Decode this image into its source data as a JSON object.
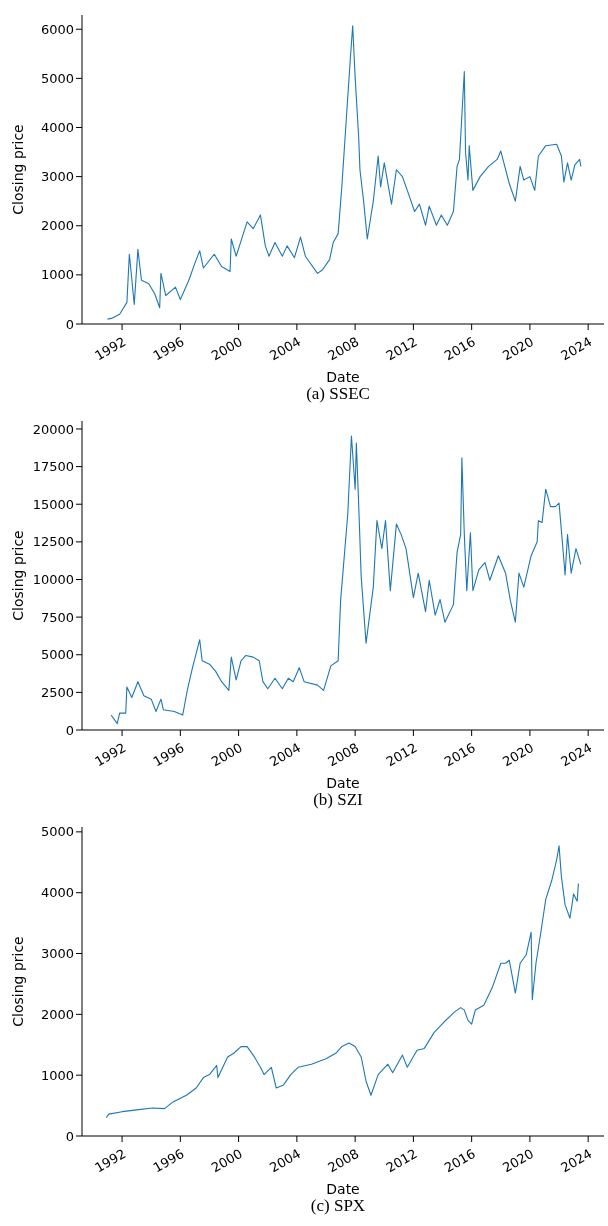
{
  "chart_data": [
    {
      "type": "line",
      "title": "(a) SSEC",
      "xlabel": "Date",
      "ylabel": "Closing price",
      "xlim": [
        "1989-04",
        "2025-02"
      ],
      "xticks": [
        "1992",
        "1996",
        "2000",
        "2004",
        "2008",
        "2012",
        "2016",
        "2020",
        "2024"
      ],
      "ylim": [
        0,
        6290
      ],
      "yticks": [
        0,
        1000,
        2000,
        3000,
        4000,
        5000,
        6000
      ],
      "series": [
        {
          "color": "#1f77b4",
          "x": [
            "1991-01",
            "1991-05",
            "1991-11",
            "1992-05",
            "1992-07",
            "1992-08",
            "1992-11",
            "1993-02",
            "1993-05",
            "1993-11",
            "1994-04",
            "1994-08",
            "1994-09",
            "1995-01",
            "1995-09",
            "1996-01",
            "1996-08",
            "1997-01",
            "1997-05",
            "1997-08",
            "1998-05",
            "1998-11",
            "1999-06",
            "1999-07",
            "1999-11",
            "2000-08",
            "2001-01",
            "2001-07",
            "2001-11",
            "2002-02",
            "2002-07",
            "2003-01",
            "2003-05",
            "2003-11",
            "2004-04",
            "2004-08",
            "2005-06",
            "2005-10",
            "2006-04",
            "2006-07",
            "2006-11",
            "2007-02",
            "2007-06",
            "2007-09",
            "2007-11",
            "2008-01",
            "2008-04",
            "2008-05",
            "2008-08",
            "2008-11",
            "2009-04",
            "2009-08",
            "2009-10",
            "2010-01",
            "2010-07",
            "2010-11",
            "2011-04",
            "2011-08",
            "2012-02",
            "2012-06",
            "2012-11",
            "2013-02",
            "2013-08",
            "2013-12",
            "2014-05",
            "2014-10",
            "2015-01",
            "2015-03",
            "2015-07",
            "2015-08",
            "2015-10",
            "2015-11",
            "2016-02",
            "2016-08",
            "2017-03",
            "2017-10",
            "2018-01",
            "2018-08",
            "2019-01",
            "2019-05",
            "2019-08",
            "2020-01",
            "2020-05",
            "2020-08",
            "2021-02",
            "2021-11",
            "2022-03",
            "2022-05",
            "2022-08",
            "2022-11",
            "2023-02",
            "2023-06",
            "2023-07"
          ],
          "values": [
            100,
            120,
            200,
            440,
            1420,
            1170,
            400,
            1520,
            890,
            820,
            610,
            330,
            1030,
            580,
            750,
            500,
            890,
            1240,
            1490,
            1140,
            1420,
            1170,
            1070,
            1730,
            1380,
            2080,
            1940,
            2220,
            1590,
            1380,
            1660,
            1380,
            1590,
            1350,
            1770,
            1380,
            1030,
            1100,
            1310,
            1660,
            1840,
            2790,
            4260,
            5380,
            6070,
            5030,
            3770,
            3140,
            2500,
            1730,
            2500,
            3420,
            2790,
            3280,
            2440,
            3140,
            3000,
            2720,
            2290,
            2440,
            2010,
            2400,
            2010,
            2220,
            2010,
            2290,
            3210,
            3350,
            5140,
            3490,
            2930,
            3630,
            2720,
            3000,
            3210,
            3350,
            3520,
            2860,
            2500,
            3210,
            2930,
            3000,
            2720,
            3420,
            3630,
            3660,
            3420,
            2890,
            3280,
            2930,
            3240,
            3350,
            3210
          ]
        }
      ]
    },
    {
      "type": "line",
      "title": "(b) SZI",
      "xlabel": "Date",
      "ylabel": "Closing price",
      "xlim": [
        "1989-04",
        "2025-02"
      ],
      "xticks": [
        "1992",
        "1996",
        "2000",
        "2004",
        "2008",
        "2012",
        "2016",
        "2020",
        "2024"
      ],
      "ylim": [
        0,
        20530
      ],
      "yticks": [
        0,
        2500,
        5000,
        7500,
        10000,
        12500,
        15000,
        17500,
        20000
      ],
      "series": [
        {
          "color": "#1f77b4",
          "x": [
            "1991-04",
            "1991-09",
            "1991-11",
            "1992-04",
            "1992-05",
            "1992-09",
            "1993-02",
            "1993-07",
            "1994-01",
            "1994-05",
            "1994-09",
            "1994-11",
            "1995-08",
            "1996-03",
            "1996-07",
            "1996-11",
            "1997-05",
            "1997-07",
            "1998-01",
            "1998-06",
            "1998-11",
            "1999-05",
            "1999-07",
            "1999-11",
            "2000-03",
            "2000-07",
            "2001-01",
            "2001-06",
            "2001-09",
            "2002-01",
            "2002-07",
            "2003-01",
            "2003-06",
            "2003-10",
            "2004-03",
            "2004-07",
            "2005-06",
            "2005-11",
            "2006-05",
            "2006-11",
            "2007-01",
            "2007-07",
            "2007-10",
            "2008-01",
            "2008-02",
            "2008-04",
            "2008-06",
            "2008-10",
            "2009-04",
            "2009-07",
            "2009-11",
            "2010-02",
            "2010-06",
            "2010-11",
            "2011-03",
            "2011-07",
            "2012-01",
            "2012-05",
            "2012-11",
            "2013-02",
            "2013-07",
            "2013-11",
            "2014-03",
            "2014-10",
            "2015-01",
            "2015-04",
            "2015-05",
            "2015-07",
            "2015-09",
            "2015-12",
            "2016-02",
            "2016-07",
            "2016-12",
            "2017-04",
            "2017-11",
            "2018-05",
            "2018-09",
            "2019-01",
            "2019-04",
            "2019-08",
            "2020-02",
            "2020-07",
            "2020-08",
            "2020-11",
            "2021-02",
            "2021-06",
            "2021-10",
            "2022-01",
            "2022-04",
            "2022-06",
            "2022-08",
            "2022-11",
            "2023-03",
            "2023-07"
          ],
          "values": [
            1000,
            420,
            1120,
            1120,
            2860,
            2160,
            3210,
            2280,
            2050,
            1230,
            2050,
            1350,
            1230,
            1000,
            2740,
            4140,
            6000,
            4600,
            4370,
            3910,
            3210,
            2630,
            4840,
            3330,
            4600,
            4950,
            4840,
            4600,
            3210,
            2740,
            3440,
            2740,
            3440,
            3210,
            4140,
            3210,
            2980,
            2630,
            4260,
            4600,
            8560,
            14370,
            19530,
            16000,
            19070,
            14840,
            10190,
            5770,
            9490,
            13910,
            12050,
            13910,
            9260,
            13680,
            12980,
            12050,
            8790,
            10420,
            7860,
            9950,
            7630,
            8670,
            7160,
            8330,
            11820,
            12980,
            18090,
            12980,
            9260,
            13100,
            9260,
            10650,
            11120,
            9950,
            11580,
            10420,
            8560,
            7160,
            10420,
            9490,
            11580,
            12510,
            13910,
            13790,
            16000,
            14840,
            14840,
            15070,
            12280,
            10300,
            12980,
            10420,
            12050,
            11000
          ]
        }
      ]
    },
    {
      "type": "line",
      "title": "(c) SPX",
      "xlabel": "Date",
      "ylabel": "Closing price",
      "xlim": [
        "1989-04",
        "2025-02"
      ],
      "xticks": [
        "1992",
        "1996",
        "2000",
        "2004",
        "2008",
        "2012",
        "2016",
        "2020",
        "2024"
      ],
      "ylim": [
        0,
        5080
      ],
      "yticks": [
        0,
        1000,
        2000,
        3000,
        4000,
        5000
      ],
      "series": [
        {
          "color": "#1f77b4",
          "x": [
            "1990-12",
            "1991-02",
            "1992-01",
            "1993-01",
            "1994-02",
            "1994-12",
            "1995-07",
            "1996-06",
            "1997-02",
            "1997-08",
            "1998-01",
            "1998-07",
            "1998-08",
            "1999-04",
            "1999-09",
            "2000-03",
            "2000-08",
            "2001-02",
            "2001-07",
            "2001-10",
            "2002-04",
            "2002-08",
            "2003-02",
            "2003-08",
            "2004-02",
            "2005-01",
            "2006-01",
            "2006-09",
            "2007-02",
            "2007-08",
            "2008-01",
            "2008-06",
            "2008-10",
            "2009-02",
            "2009-08",
            "2010-04",
            "2010-08",
            "2011-04",
            "2011-08",
            "2012-04",
            "2012-10",
            "2013-06",
            "2014-02",
            "2014-11",
            "2015-04",
            "2015-07",
            "2015-10",
            "2016-01",
            "2016-04",
            "2016-11",
            "2017-06",
            "2018-01",
            "2018-05",
            "2018-08",
            "2019-01",
            "2019-05",
            "2019-10",
            "2020-02",
            "2020-03",
            "2020-06",
            "2020-10",
            "2021-02",
            "2021-07",
            "2021-11",
            "2022-01",
            "2022-03",
            "2022-06",
            "2022-10",
            "2023-01",
            "2023-04",
            "2023-05"
          ],
          "values": [
            300,
            360,
            400,
            430,
            460,
            450,
            560,
            670,
            790,
            960,
            1010,
            1160,
            960,
            1300,
            1360,
            1470,
            1470,
            1300,
            1130,
            1010,
            1130,
            790,
            840,
            1010,
            1130,
            1180,
            1270,
            1360,
            1470,
            1530,
            1470,
            1300,
            900,
            670,
            1010,
            1180,
            1040,
            1330,
            1130,
            1410,
            1440,
            1700,
            1870,
            2040,
            2110,
            2070,
            1900,
            1840,
            2070,
            2150,
            2440,
            2840,
            2840,
            2890,
            2350,
            2840,
            2980,
            3350,
            2240,
            2840,
            3350,
            3890,
            4200,
            4540,
            4770,
            4260,
            3800,
            3580,
            3980,
            3860,
            4150
          ]
        }
      ]
    }
  ]
}
